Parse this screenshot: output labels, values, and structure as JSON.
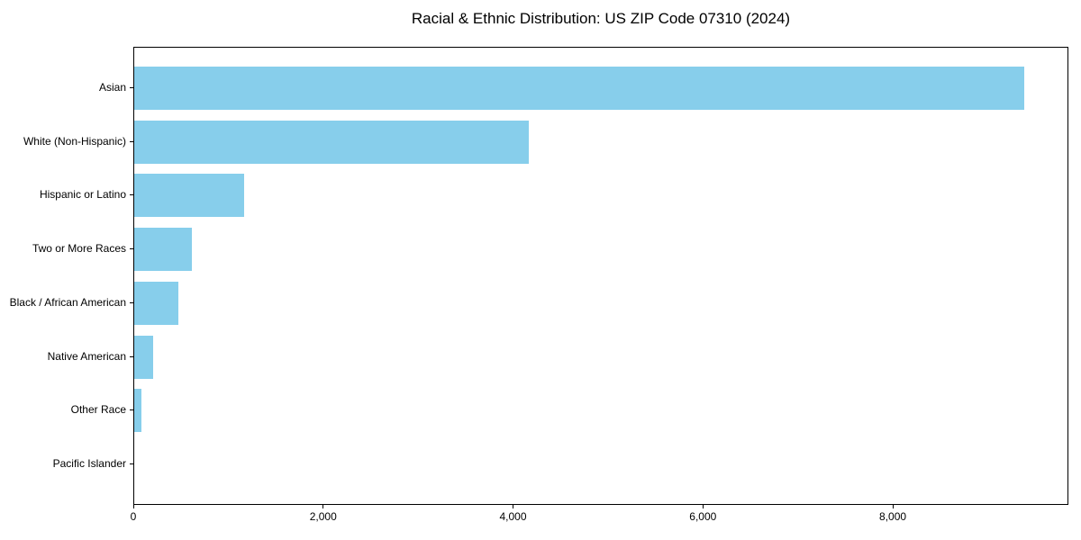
{
  "chart_data": {
    "type": "bar",
    "orientation": "horizontal",
    "title": "Racial & Ethnic Distribution: US ZIP Code 07310 (2024)",
    "categories": [
      "Asian",
      "White (Non-Hispanic)",
      "Hispanic or Latino",
      "Two or More Races",
      "Black / African American",
      "Native American",
      "Other Race",
      "Pacific Islander"
    ],
    "values": [
      9380,
      4160,
      1155,
      605,
      465,
      195,
      80,
      0
    ],
    "bar_color": "#87CEEB",
    "xlabel": "",
    "ylabel": "",
    "xlim": [
      0,
      9850
    ],
    "x_ticks": [
      0,
      2000,
      4000,
      6000,
      8000
    ],
    "x_tick_labels": [
      "0",
      "2,000",
      "4,000",
      "6,000",
      "8,000"
    ],
    "grid": false,
    "legend": null,
    "background": "#ffffff"
  }
}
